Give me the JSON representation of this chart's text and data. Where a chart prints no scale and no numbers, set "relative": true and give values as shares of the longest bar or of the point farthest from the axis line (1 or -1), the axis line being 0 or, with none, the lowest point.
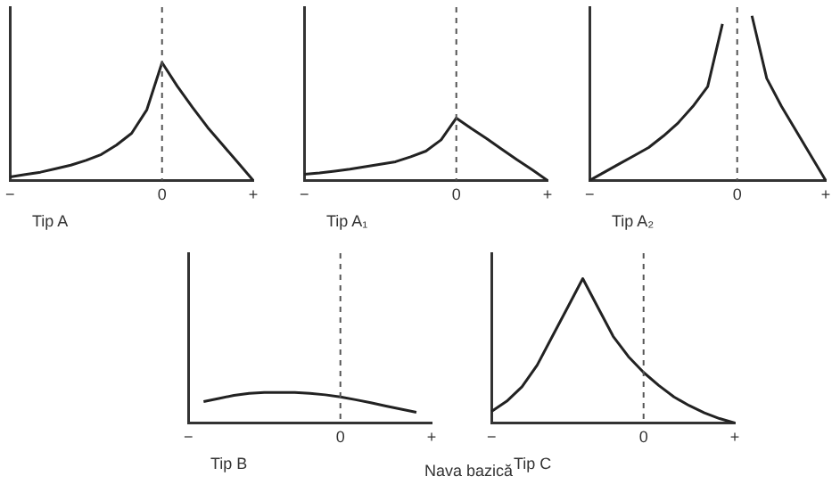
{
  "chart_data": [
    {
      "type": "line",
      "xlabel": "Tip A",
      "relative": true,
      "categories": [
        "−",
        null,
        null,
        null,
        null,
        null,
        null,
        null,
        null,
        null,
        "0",
        null,
        null,
        null,
        null,
        null,
        "+"
      ],
      "grid": false,
      "legend": false,
      "marker": "none",
      "ref_lines": [
        {
          "axis": "x",
          "value": "0",
          "line_style": "dashed"
        }
      ],
      "series": [
        {
          "color": "#222222",
          "values": [
            0.03,
            0.05,
            0.07,
            0.1,
            0.13,
            0.17,
            0.22,
            0.3,
            0.4,
            0.6,
            1,
            0.8,
            0.62,
            0.45,
            0.3,
            0.15,
            0
          ]
        }
      ]
    },
    {
      "type": "line",
      "xlabel": "Tip A₁",
      "relative": true,
      "categories": [
        "−",
        null,
        null,
        null,
        null,
        null,
        null,
        null,
        null,
        null,
        "0",
        null,
        null,
        null,
        null,
        null,
        "+"
      ],
      "grid": false,
      "legend": false,
      "marker": "none",
      "ref_lines": [
        {
          "axis": "x",
          "value": "0",
          "line_style": "dashed"
        }
      ],
      "series": [
        {
          "color": "#222222",
          "values": [
            0.1,
            0.12,
            0.15,
            0.18,
            0.22,
            0.26,
            0.3,
            0.38,
            0.47,
            0.65,
            1,
            0.83,
            0.67,
            0.5,
            0.33,
            0.17,
            0
          ]
        }
      ]
    },
    {
      "type": "line",
      "xlabel": "Tip A₂",
      "relative": true,
      "categories": [
        "−",
        null,
        null,
        null,
        null,
        null,
        null,
        null,
        null,
        null,
        "0",
        null,
        null,
        null,
        null,
        null,
        "+"
      ],
      "grid": false,
      "legend": false,
      "marker": "none",
      "ref_lines": [
        {
          "axis": "x",
          "value": "0",
          "line_style": "dashed"
        }
      ],
      "series": [
        {
          "color": "#222222",
          "values": [
            0,
            0.05,
            0.1,
            0.15,
            0.2,
            0.27,
            0.35,
            0.45,
            0.57,
            0.95,
            null,
            1,
            0.62,
            0.45,
            0.3,
            0.15,
            0
          ]
        }
      ]
    },
    {
      "type": "line",
      "xlabel": "Tip B",
      "relative": true,
      "categories": [
        "−",
        null,
        null,
        null,
        null,
        null,
        null,
        null,
        null,
        null,
        "0",
        null,
        null,
        null,
        null,
        null,
        "+"
      ],
      "grid": false,
      "legend": false,
      "marker": "none",
      "ref_lines": [
        {
          "axis": "x",
          "value": "0",
          "line_style": "dashed"
        }
      ],
      "annotations": [
        "Nava bazică"
      ],
      "series": [
        {
          "color": "#222222",
          "values": [
            null,
            0.7,
            0.8,
            0.9,
            0.97,
            1,
            1,
            1,
            0.97,
            0.92,
            0.85,
            0.76,
            0.66,
            0.55,
            0.45,
            0.35,
            null
          ]
        }
      ]
    },
    {
      "type": "line",
      "xlabel": "Tip C",
      "relative": true,
      "categories": [
        "−",
        null,
        null,
        null,
        null,
        null,
        null,
        null,
        null,
        null,
        "0",
        null,
        null,
        null,
        null,
        null,
        "+"
      ],
      "grid": false,
      "legend": false,
      "marker": "none",
      "ref_lines": [
        {
          "axis": "x",
          "value": "0",
          "line_style": "dashed"
        }
      ],
      "series": [
        {
          "color": "#222222",
          "values": [
            0.08,
            0.15,
            0.25,
            0.4,
            0.6,
            0.8,
            1,
            0.8,
            0.6,
            0.46,
            0.35,
            0.26,
            0.18,
            0.12,
            0.07,
            0.03,
            0
          ]
        }
      ]
    }
  ]
}
